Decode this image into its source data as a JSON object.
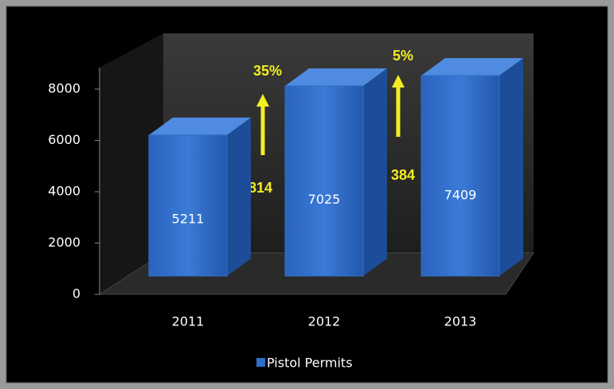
{
  "chart_data": {
    "type": "bar3d",
    "categories": [
      "2011",
      "2012",
      "2013"
    ],
    "series": [
      {
        "name": "Pistol Permits",
        "color": "#2f6fc8",
        "values": [
          5211,
          7025,
          7409
        ]
      }
    ],
    "ylim": [
      0,
      8000
    ],
    "yticks": [
      0,
      2000,
      4000,
      6000,
      8000
    ],
    "annotations": [
      "35%",
      "1814",
      "5%",
      "384"
    ]
  }
}
